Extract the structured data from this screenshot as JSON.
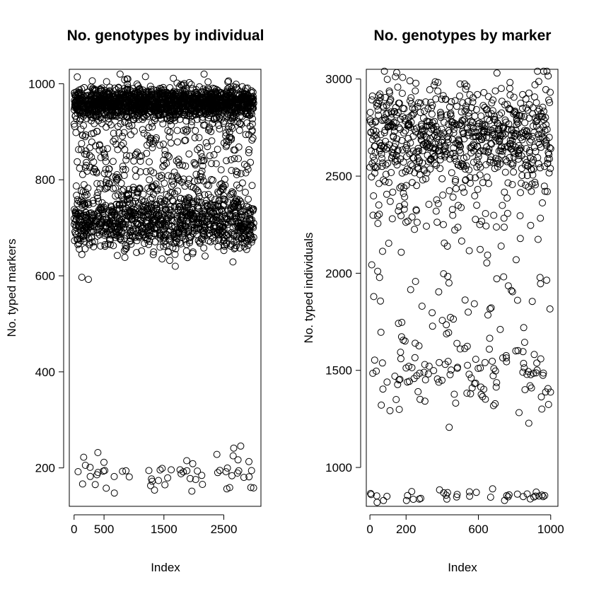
{
  "chart_data": [
    {
      "type": "scatter",
      "title": "No. genotypes by individual",
      "xlabel": "Index",
      "ylabel": "No. typed markers",
      "xlim": [
        -80,
        3120
      ],
      "ylim": [
        120,
        1030
      ],
      "xticks": [
        0,
        500,
        1500,
        2500
      ],
      "yticks": [
        200,
        400,
        600,
        800,
        1000
      ],
      "n_points": 3000,
      "clusters": [
        {
          "y_center": 960,
          "y_spread": 16,
          "share": 0.52
        },
        {
          "y_center": 880,
          "y_spread": 45,
          "share": 0.08
        },
        {
          "y_center": 710,
          "y_spread": 28,
          "share": 0.3
        },
        {
          "y_center": 770,
          "y_spread": 45,
          "share": 0.08
        },
        {
          "y_center": 190,
          "y_spread": 20,
          "share": 0.02
        }
      ],
      "marker": "open-circle",
      "grid": false
    },
    {
      "type": "scatter",
      "title": "No. genotypes by marker",
      "xlabel": "Index",
      "ylabel": "No. typed individuals",
      "xlim": [
        -20,
        1040
      ],
      "ylim": [
        800,
        3050
      ],
      "xticks": [
        0,
        200,
        600,
        1000
      ],
      "yticks": [
        1000,
        1500,
        2000,
        2500,
        3000
      ],
      "n_points": 1000,
      "clusters": [
        {
          "y_center": 2700,
          "y_spread": 140,
          "share": 0.78
        },
        {
          "y_center": 2250,
          "y_spread": 80,
          "share": 0.04
        },
        {
          "y_center": 1850,
          "y_spread": 180,
          "share": 0.06
        },
        {
          "y_center": 1480,
          "y_spread": 90,
          "share": 0.1
        },
        {
          "y_center": 855,
          "y_spread": 15,
          "share": 0.02
        }
      ],
      "marker": "open-circle",
      "grid": false
    }
  ]
}
